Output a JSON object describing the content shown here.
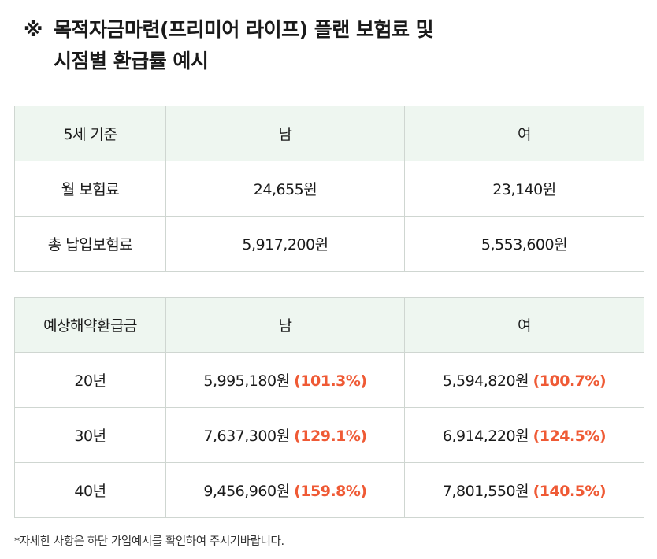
{
  "title": {
    "mark": "※",
    "line1": "목적자금마련(프리미어 라이프) 플랜 보험료 및",
    "line2": "시점별 환급률 예시"
  },
  "premium_table": {
    "headers": [
      "5세 기준",
      "남",
      "여"
    ],
    "rows": [
      {
        "label": "월 보험료",
        "male": "24,655원",
        "female": "23,140원"
      },
      {
        "label": "총 납입보험료",
        "male": "5,917,200원",
        "female": "5,553,600원"
      }
    ]
  },
  "refund_table": {
    "headers": [
      "예상해약환급금",
      "남",
      "여"
    ],
    "rows": [
      {
        "label": "20년",
        "male": "5,995,180원",
        "male_rate": "(101.3%)",
        "female": "5,594,820원",
        "female_rate": "(100.7%)"
      },
      {
        "label": "30년",
        "male": "7,637,300원",
        "male_rate": "(129.1%)",
        "female": "6,914,220원",
        "female_rate": "(124.5%)"
      },
      {
        "label": "40년",
        "male": "9,456,960원",
        "male_rate": "(159.8%)",
        "female": "7,801,550원",
        "female_rate": "(140.5%)"
      }
    ]
  },
  "footnote": "*자세한 사항은 하단 가입예시를 확인하여 주시기바랍니다.",
  "colors": {
    "header_bg": "#eef6f0",
    "border": "#cfd6d1",
    "rate_accent": "#ef5a35"
  }
}
